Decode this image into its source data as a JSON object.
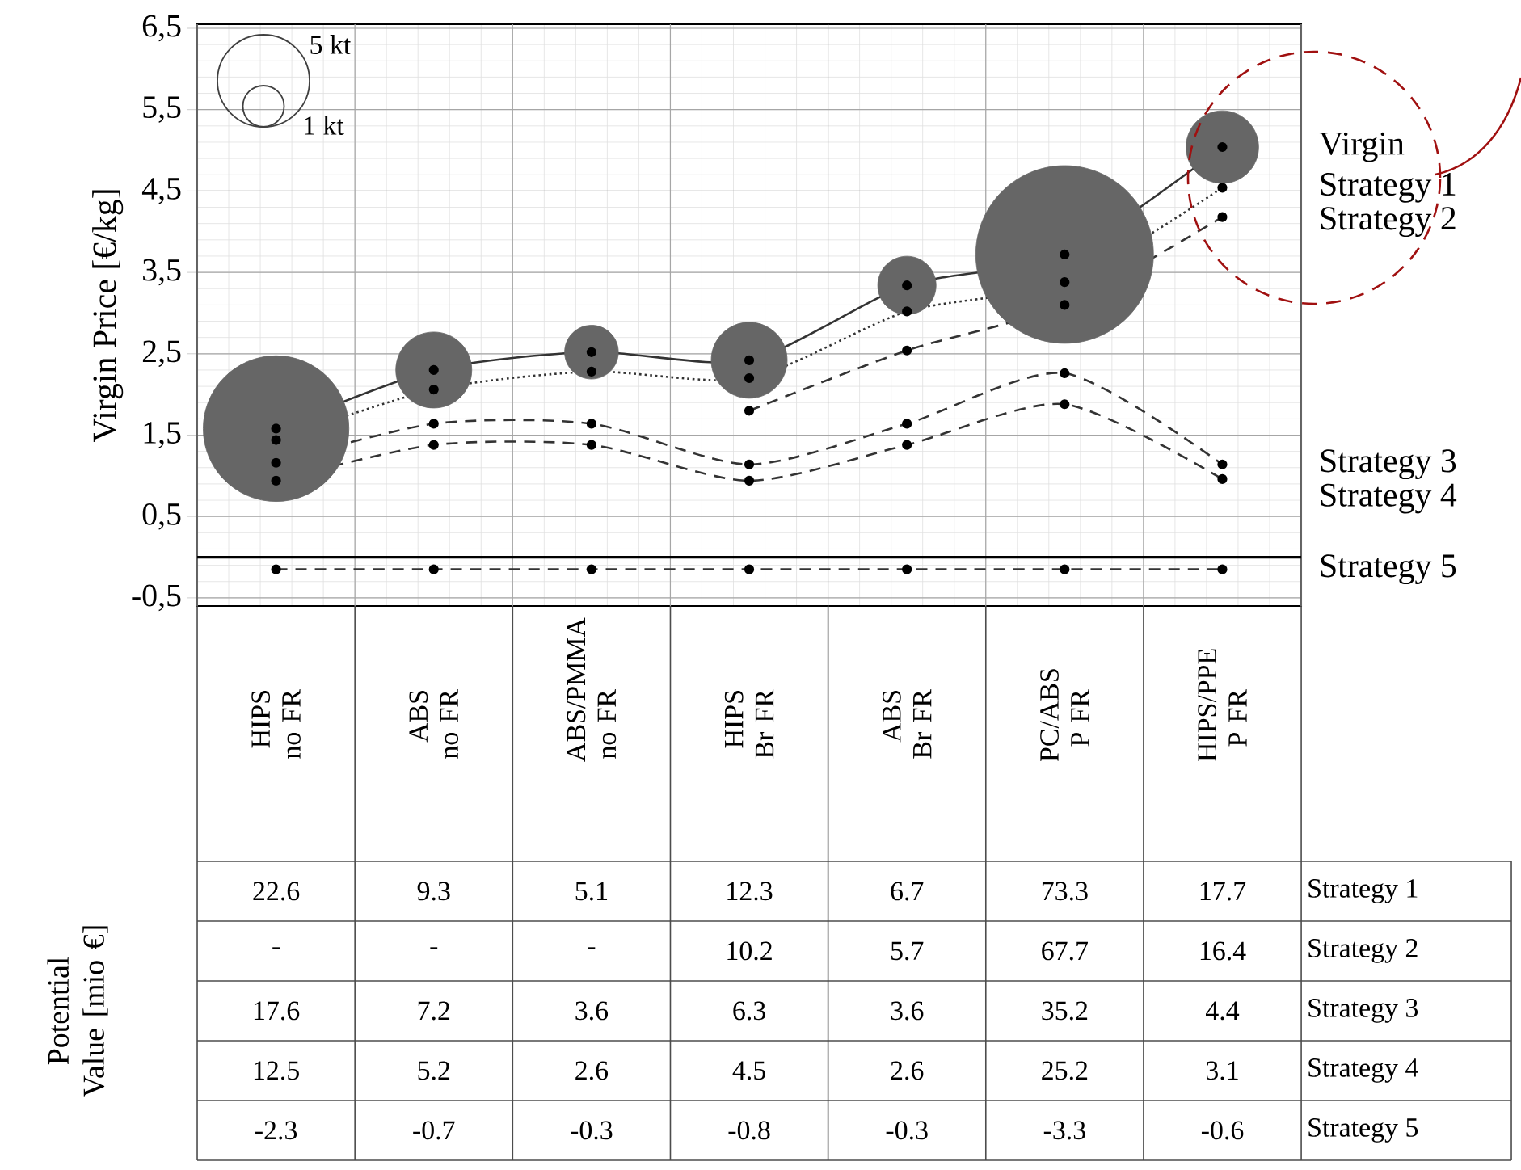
{
  "chart_data": [
    {
      "type": "line",
      "ylabel": "Virgin Price [€/kg]",
      "categories": [
        "HIPS no FR",
        "ABS no FR",
        "ABS/PMMA no FR",
        "HIPS Br FR",
        "ABS Br FR",
        "PC/ABS P FR",
        "HIPS/PPE P FR"
      ],
      "ylim": [
        -0.6,
        6.55
      ],
      "yticks": [
        {
          "value": -0.5,
          "label": "-0,5"
        },
        {
          "value": 0.5,
          "label": "0,5"
        },
        {
          "value": 1.5,
          "label": "1,5"
        },
        {
          "value": 2.5,
          "label": "2,5"
        },
        {
          "value": 3.5,
          "label": "3,5"
        },
        {
          "value": 4.5,
          "label": "4,5"
        },
        {
          "value": 5.5,
          "label": "5,5"
        },
        {
          "value": 6.5,
          "label": "6,5"
        }
      ],
      "grid": true,
      "marker": "circle",
      "ref_lines": [
        {
          "axis": "y",
          "value": 0
        }
      ],
      "size_legend": [
        {
          "value": 5,
          "label": "5 kt"
        },
        {
          "value": 1,
          "label": "1 kt"
        }
      ],
      "series": [
        {
          "type": "bubble",
          "color": "#666666",
          "values": [
            1.58,
            2.3,
            2.52,
            2.42,
            3.34,
            3.72,
            5.04
          ],
          "sizes": [
            12.5,
            3.4,
            1.7,
            3.4,
            2.0,
            18.6,
            3.1
          ]
        },
        {
          "name": "Virgin",
          "color": "#333333",
          "line_style": "solid",
          "values": [
            1.58,
            2.3,
            2.52,
            2.42,
            3.34,
            3.72,
            5.04
          ]
        },
        {
          "name": "Strategy 1",
          "color": "#333333",
          "line_style": "dotted",
          "values": [
            1.44,
            2.06,
            2.28,
            2.2,
            3.02,
            3.38,
            4.54
          ]
        },
        {
          "name": "Strategy 2",
          "color": "#333333",
          "line_style": "dashed",
          "values": [
            null,
            null,
            null,
            1.8,
            2.54,
            3.1,
            4.18
          ]
        },
        {
          "name": "Strategy 3",
          "color": "#333333",
          "line_style": "dashed",
          "values": [
            1.16,
            1.64,
            1.64,
            1.14,
            1.64,
            2.26,
            1.14
          ]
        },
        {
          "name": "Strategy 4",
          "color": "#333333",
          "line_style": "dashed",
          "values": [
            0.94,
            1.38,
            1.38,
            0.94,
            1.38,
            1.88,
            0.96
          ]
        },
        {
          "name": "Strategy 5",
          "color": "#333333",
          "line_style": "dashed",
          "values": [
            -0.15,
            -0.15,
            -0.15,
            -0.15,
            -0.15,
            -0.15,
            -0.15
          ]
        }
      ]
    },
    {
      "type": "other",
      "ylabel": "Potential Value [mio €]",
      "annotations": [
        "22.6",
        "9.3",
        "5.1",
        "12.3",
        "6.7",
        "73.3",
        "17.7",
        "Strategy 1",
        "-",
        "-",
        "-",
        "10.2",
        "5.7",
        "67.7",
        "16.4",
        "Strategy 2",
        "17.6",
        "7.2",
        "3.6",
        "6.3",
        "3.6",
        "35.2",
        "4.4",
        "Strategy 3",
        "12.5",
        "5.2",
        "2.6",
        "4.5",
        "2.6",
        "25.2",
        "3.1",
        "Strategy 4",
        "-2.3",
        "-0.7",
        "-0.3",
        "-0.8",
        "-0.3",
        "-3.3",
        "-0.6",
        "Strategy 5"
      ]
    }
  ]
}
